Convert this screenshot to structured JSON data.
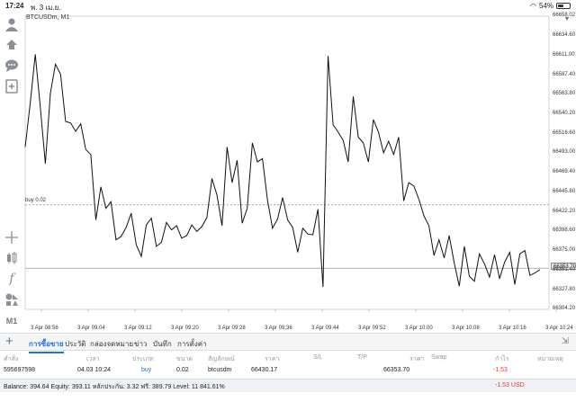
{
  "status": {
    "time": "17:24",
    "date": "พ. 3 เม.ย.",
    "battery": "54%",
    "battery_level": 0.54
  },
  "chart": {
    "symbol": "BTCUSDm, M1",
    "order_label": "buy 0.02",
    "current_price_label": "66353.70"
  },
  "chart_data": {
    "type": "line",
    "title": "BTCUSDm, M1",
    "xlabel": "",
    "ylabel": "",
    "ylim": [
      66304.0,
      66658.0
    ],
    "yticks": [
      "66658.02",
      "66634.60",
      "66611.00",
      "66587.40",
      "66563.80",
      "66540.20",
      "66516.60",
      "66493.00",
      "66469.40",
      "66445.80",
      "66422.20",
      "66398.60",
      "66375.00",
      "66351.40",
      "66327.80",
      "66304.20"
    ],
    "xticks": [
      "3 Apr 08:56",
      "3 Apr 09:04",
      "3 Apr 09:12",
      "3 Apr 09:20",
      "3 Apr 09:28",
      "3 Apr 09:36",
      "3 Apr 09:44",
      "3 Apr 09:52",
      "3 Apr 10:00",
      "3 Apr 10:08",
      "3 Apr 10:16",
      "3 Apr 10:24"
    ],
    "order_price": 66430.17,
    "current_price": 66353.7,
    "series": [
      {
        "values": [
          66500,
          66553,
          66612,
          66548,
          66480,
          66565,
          66600,
          66588,
          66531,
          66529,
          66519,
          66528,
          66497,
          66491,
          66412,
          66452,
          66426,
          66434,
          66388,
          66392,
          66403,
          66420,
          66382,
          66368,
          66406,
          66414,
          66380,
          66385,
          66409,
          66400,
          66405,
          66390,
          66393,
          66406,
          66398,
          66404,
          66415,
          66462,
          66442,
          66405,
          66500,
          66457,
          66484,
          66408,
          66426,
          66505,
          66482,
          66486,
          66436,
          66402,
          66413,
          66439,
          66412,
          66403,
          66373,
          66402,
          66395,
          66394,
          66425,
          66331,
          66610,
          66527,
          66518,
          66508,
          66482,
          66561,
          66512,
          66505,
          66482,
          66533,
          66518,
          66493,
          66507,
          66491,
          66512,
          66435,
          66457,
          66453,
          66437,
          66417,
          66405,
          66369,
          66388,
          66366,
          66393,
          66360,
          66332,
          66380,
          66344,
          66338,
          66371,
          66359,
          66343,
          66370,
          66341,
          66361,
          66373,
          66334,
          66371,
          66375,
          66345,
          66348,
          66352
        ]
      }
    ]
  },
  "tabs": {
    "trade": "การซื้อขาย",
    "history": "ประวัติ",
    "mailbox": "กล่องจดหมาย",
    "news": "ข่าว",
    "journal": "บันทึก",
    "settings": "การตั้งค่า"
  },
  "table": {
    "headers": {
      "order": "คำสั่ง",
      "time": "เวลา",
      "type": "ประเภท",
      "volume": "ขนาด",
      "symbol": "สัญลักษณ์",
      "price": "ราคา",
      "sl": "S/L",
      "tp": "T/P",
      "price2": "ราคา",
      "swap": "Swap",
      "profit": "กำไร",
      "comment": "หมายเหตุ"
    },
    "row": {
      "order": "595697598",
      "time": "04.03 10:24",
      "type": "buy",
      "volume": "0.02",
      "symbol": "btcusdm",
      "open_price": "66430.17",
      "current_price": "66353.70",
      "profit": "-1.53"
    }
  },
  "footer": {
    "summary": "Balance: 394.64 Equity: 393.11 หลักประกัน: 3.32 ฟรี: 389.79 Level: 11 841.61%",
    "total": "-1.53  USD"
  },
  "colors": {
    "accent": "#1c73d8",
    "loss": "#e23b3b",
    "line": "#111111"
  },
  "icons": [
    "profile-icon",
    "sign-in-icon",
    "chat-icon",
    "new-chart-icon",
    "crosshair-icon",
    "candles-icon",
    "indicator-icon",
    "objects-icon",
    "timeframe"
  ]
}
